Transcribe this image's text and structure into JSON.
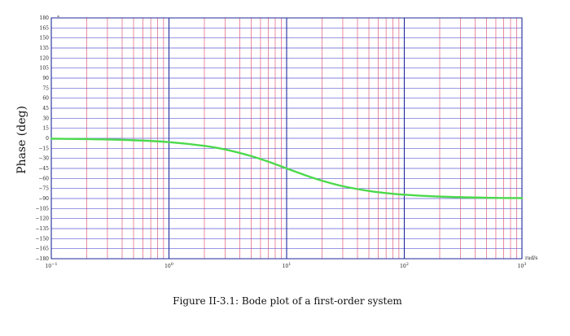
{
  "chart_data": {
    "type": "line",
    "title": "",
    "xlabel": "",
    "ylabel": "Phase (deg)",
    "x_unit": "rad/s",
    "y_unit": "°",
    "x_scale": "log",
    "xlim": [
      0.1,
      1000
    ],
    "ylim": [
      -180,
      180
    ],
    "grid": true,
    "x_ticks": [
      {
        "value": 0.1,
        "base": "10",
        "exp": "−1"
      },
      {
        "value": 1,
        "base": "10",
        "exp": "0"
      },
      {
        "value": 10,
        "base": "10",
        "exp": "1"
      },
      {
        "value": 100,
        "base": "10",
        "exp": "2"
      },
      {
        "value": 1000,
        "base": "10",
        "exp": "3"
      }
    ],
    "y_ticks": [
      {
        "value": 180,
        "label": "180"
      },
      {
        "value": 165,
        "label": "165"
      },
      {
        "value": 150,
        "label": "150"
      },
      {
        "value": 135,
        "label": "135"
      },
      {
        "value": 120,
        "label": "120"
      },
      {
        "value": 105,
        "label": "105"
      },
      {
        "value": 90,
        "label": "90"
      },
      {
        "value": 75,
        "label": "75"
      },
      {
        "value": 60,
        "label": "60"
      },
      {
        "value": 45,
        "label": "45"
      },
      {
        "value": 30,
        "label": "30"
      },
      {
        "value": 15,
        "label": "15"
      },
      {
        "value": 0,
        "label": "0"
      },
      {
        "value": -15,
        "label": "−15"
      },
      {
        "value": -30,
        "label": "−30"
      },
      {
        "value": -45,
        "label": "−45"
      },
      {
        "value": -60,
        "label": "−60"
      },
      {
        "value": -75,
        "label": "−75"
      },
      {
        "value": -90,
        "label": "−90"
      },
      {
        "value": -105,
        "label": "−105"
      },
      {
        "value": -120,
        "label": "−120"
      },
      {
        "value": -135,
        "label": "−135"
      },
      {
        "value": -150,
        "label": "−150"
      },
      {
        "value": -165,
        "label": "−165"
      },
      {
        "value": -180,
        "label": "−180"
      }
    ],
    "series": [
      {
        "color": "#4cd94c",
        "x": [
          0.1,
          0.2,
          0.5,
          1,
          2,
          3,
          5,
          7,
          10,
          15,
          20,
          30,
          50,
          70,
          100,
          200,
          500,
          1000
        ],
        "y": [
          -0.6,
          -1.1,
          -2.9,
          -5.7,
          -11.3,
          -16.7,
          -26.6,
          -35.0,
          -45.0,
          -56.3,
          -63.4,
          -71.6,
          -78.7,
          -81.9,
          -84.3,
          -87.1,
          -88.9,
          -89.4
        ]
      }
    ],
    "colors": {
      "major_grid": "#1f2a99",
      "minor_vertical_grid": "#d94060",
      "horizontal_grid": "#5a5ad8",
      "curve": "#4cd94c"
    }
  },
  "caption": "Figure II-3.1: Bode plot of a first-order system"
}
